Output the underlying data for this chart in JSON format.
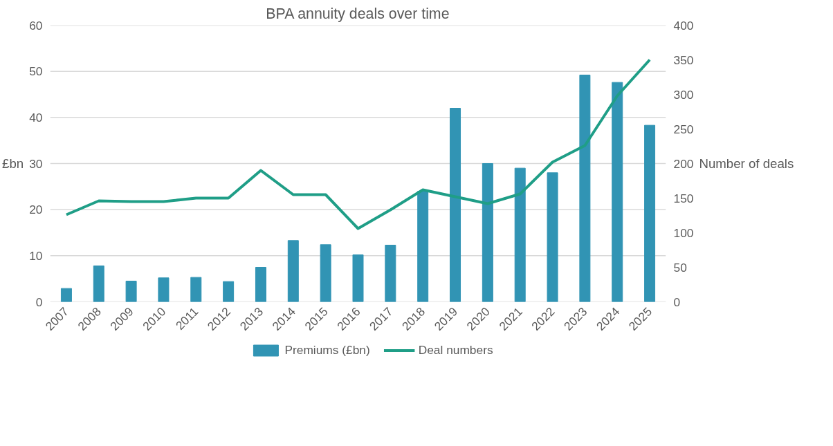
{
  "chart_data": {
    "type": "bar",
    "title": "BPA annuity deals over time",
    "ylabel": "£bn",
    "y2label": "Number of deals",
    "categories": [
      "2007",
      "2008",
      "2009",
      "2010",
      "2011",
      "2012",
      "2013",
      "2014",
      "2015",
      "2016",
      "2017",
      "2018",
      "2019",
      "2020",
      "2021",
      "2022",
      "2023",
      "2024",
      "2025"
    ],
    "series": [
      {
        "name": "Premiums (£bn)",
        "color": "#3194b4",
        "values": [
          2.9,
          7.8,
          4.5,
          5.2,
          5.3,
          4.4,
          7.5,
          13.3,
          12.4,
          10.2,
          12.3,
          24,
          42,
          30,
          29,
          28,
          49.2,
          47.6,
          38.3
        ]
      },
      {
        "name": "Deal numbers",
        "type": "line",
        "axis": "y2",
        "color": "#1f9e87",
        "values": [
          126,
          146,
          145,
          145,
          150,
          150,
          190,
          155,
          155,
          106,
          133,
          162,
          152,
          142,
          156,
          202,
          226,
          298,
          350
        ]
      }
    ],
    "ylim": [
      0,
      60
    ],
    "yticks": [
      0,
      10,
      20,
      30,
      40,
      50,
      60
    ],
    "y2lim": [
      0,
      400
    ],
    "y2ticks": [
      0,
      50,
      100,
      150,
      200,
      250,
      300,
      350,
      400
    ],
    "grid": "y",
    "legend": "bottom"
  }
}
